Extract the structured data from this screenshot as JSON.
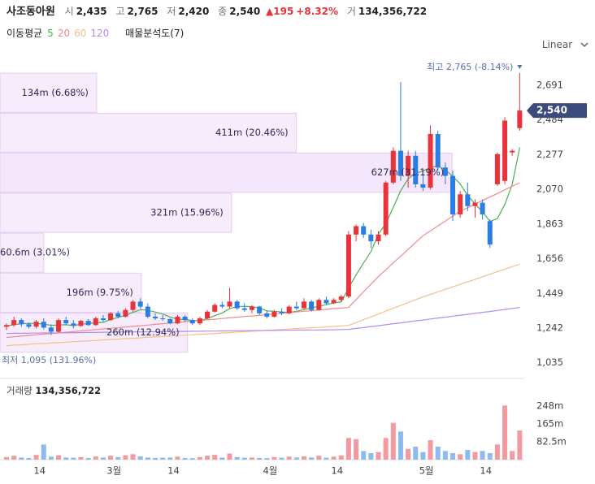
{
  "header": {
    "name": "사조동아원",
    "items": [
      {
        "label": "시",
        "value": "2,435"
      },
      {
        "label": "고",
        "value": "2,765"
      },
      {
        "label": "저",
        "value": "2,420"
      },
      {
        "label": "종",
        "value": "2,540"
      }
    ],
    "change": "▲195",
    "change_pct": "+8.32%",
    "volume_label": "거",
    "volume": "134,356,722"
  },
  "legend": {
    "title": "이동평균",
    "profile": "매물분석도(7)"
  },
  "scale_mode": "Linear",
  "chart_data": [
    {
      "type": "candlestick",
      "categories": [
        null,
        null,
        null,
        null,
        null,
        "14",
        null,
        null,
        null,
        null,
        null,
        null,
        null,
        null,
        null,
        "3월",
        null,
        null,
        null,
        null,
        null,
        null,
        null,
        "14",
        null,
        null,
        null,
        null,
        null,
        null,
        null,
        null,
        null,
        null,
        null,
        null,
        "4월",
        null,
        null,
        null,
        null,
        null,
        null,
        null,
        null,
        "14",
        null,
        null,
        null,
        null,
        null,
        null,
        null,
        null,
        null,
        null,
        null,
        "5월",
        null,
        null,
        null,
        null,
        null,
        null,
        null,
        "14",
        null,
        null,
        null,
        null
      ],
      "open": [
        1250,
        1260,
        1290,
        1265,
        1250,
        1280,
        1245,
        1220,
        1290,
        1270,
        1255,
        1285,
        1260,
        1300,
        1290,
        1330,
        1310,
        1350,
        1400,
        1370,
        1310,
        1300,
        1295,
        1270,
        1310,
        1290,
        1270,
        1300,
        1340,
        1380,
        1370,
        1400,
        1360,
        1350,
        1370,
        1330,
        1310,
        1340,
        1330,
        1370,
        1360,
        1400,
        1350,
        1410,
        1390,
        1410,
        1430,
        1800,
        1850,
        1800,
        1760,
        1800,
        2110,
        2300,
        2150,
        2270,
        2100,
        2080,
        2400,
        2200,
        2150,
        1920,
        2040,
        1970,
        1990,
        1880,
        2100,
        2120,
        2290,
        2435
      ],
      "high": [
        1270,
        1310,
        1300,
        1275,
        1290,
        1300,
        1265,
        1300,
        1310,
        1290,
        1290,
        1295,
        1310,
        1320,
        1340,
        1345,
        1360,
        1410,
        1420,
        1390,
        1330,
        1320,
        1300,
        1320,
        1320,
        1300,
        1310,
        1350,
        1390,
        1400,
        1480,
        1410,
        1390,
        1380,
        1375,
        1345,
        1350,
        1360,
        1380,
        1400,
        1420,
        1410,
        1420,
        1430,
        1420,
        1440,
        1820,
        1860,
        1870,
        1830,
        1820,
        2120,
        2320,
        2710,
        2300,
        2300,
        2160,
        2450,
        2420,
        2230,
        2180,
        2060,
        2110,
        2010,
        2010,
        1890,
        2290,
        2500,
        2310,
        2765
      ],
      "low": [
        1230,
        1250,
        1250,
        1240,
        1240,
        1235,
        1200,
        1215,
        1260,
        1240,
        1250,
        1255,
        1255,
        1280,
        1285,
        1300,
        1305,
        1340,
        1360,
        1300,
        1290,
        1285,
        1265,
        1265,
        1280,
        1260,
        1260,
        1295,
        1335,
        1360,
        1360,
        1350,
        1340,
        1330,
        1320,
        1300,
        1305,
        1320,
        1325,
        1350,
        1355,
        1340,
        1345,
        1380,
        1385,
        1400,
        1420,
        1760,
        1780,
        1720,
        1740,
        1790,
        2100,
        2120,
        2080,
        2080,
        2060,
        2070,
        2180,
        2100,
        1880,
        1900,
        1940,
        1900,
        1890,
        1720,
        2090,
        2100,
        2270,
        2420
      ],
      "close": [
        1260,
        1290,
        1265,
        1250,
        1280,
        1245,
        1220,
        1290,
        1270,
        1255,
        1285,
        1260,
        1300,
        1290,
        1330,
        1310,
        1350,
        1400,
        1370,
        1310,
        1300,
        1295,
        1270,
        1310,
        1290,
        1270,
        1300,
        1340,
        1380,
        1370,
        1400,
        1360,
        1350,
        1370,
        1330,
        1310,
        1340,
        1330,
        1370,
        1360,
        1400,
        1350,
        1410,
        1390,
        1410,
        1430,
        1800,
        1850,
        1800,
        1760,
        1800,
        2110,
        2300,
        2150,
        2270,
        2100,
        2080,
        2400,
        2200,
        2150,
        1920,
        2040,
        1970,
        1990,
        1920,
        1740,
        2280,
        2480,
        2300,
        2540
      ],
      "up_color": "#e8333a",
      "down_color": "#2a7de1",
      "ylim": [
        990,
        2836
      ],
      "yticks": [
        {
          "value": 1035,
          "label": "1,035"
        },
        {
          "value": 1242,
          "label": "1,242"
        },
        {
          "value": 1449,
          "label": "1,449"
        },
        {
          "value": 1656,
          "label": "1,656"
        },
        {
          "value": 1863,
          "label": "1,863"
        },
        {
          "value": 2070,
          "label": "2,070"
        },
        {
          "value": 2277,
          "label": "2,277"
        },
        {
          "value": 2484,
          "label": "2,484"
        },
        {
          "value": 2691,
          "label": "2,691"
        }
      ],
      "grid": false,
      "series": [
        {
          "name": "5",
          "color": "#4caf50",
          "values": [
            1255,
            1262,
            1268,
            1270,
            1269,
            1266,
            1258,
            1261,
            1262,
            1257,
            1264,
            1270,
            1274,
            1276,
            1293,
            1306,
            1318,
            1336,
            1352,
            1348,
            1338,
            1326,
            1308,
            1295,
            1293,
            1287,
            1287,
            1299,
            1316,
            1332,
            1358,
            1370,
            1372,
            1370,
            1362,
            1344,
            1342,
            1338,
            1336,
            1342,
            1352,
            1362,
            1372,
            1382,
            1392,
            1398,
            1482,
            1560,
            1630,
            1698,
            1802,
            1866,
            1962,
            2062,
            2132,
            2166,
            2180,
            2200,
            2210,
            2186,
            2148,
            2102,
            2034,
            1982,
            1936,
            1878,
            1896,
            1980,
            2100,
            2320
          ]
        },
        {
          "name": "20",
          "color": "#f08a8a",
          "values": [
            1186,
            1190,
            1194,
            1198,
            1202,
            1206,
            1210,
            1213,
            1217,
            1221,
            1225,
            1229,
            1233,
            1237,
            1241,
            1244,
            1248,
            1252,
            1256,
            1260,
            1264,
            1268,
            1272,
            1276,
            1280,
            1283,
            1287,
            1291,
            1295,
            1299,
            1303,
            1307,
            1311,
            1314,
            1318,
            1322,
            1326,
            1330,
            1334,
            1338,
            1342,
            1346,
            1350,
            1354,
            1358,
            1361,
            1365,
            1411,
            1458,
            1504,
            1550,
            1590,
            1631,
            1671,
            1712,
            1752,
            1793,
            1822,
            1851,
            1880,
            1910,
            1939,
            1960,
            1982,
            2003,
            2024,
            2045,
            2067,
            2088,
            2109
          ]
        },
        {
          "name": "60",
          "color": "#f5bf8a",
          "values": [
            1137,
            1140,
            1142,
            1145,
            1148,
            1150,
            1153,
            1155,
            1158,
            1161,
            1163,
            1166,
            1168,
            1171,
            1174,
            1176,
            1179,
            1181,
            1184,
            1187,
            1189,
            1192,
            1194,
            1197,
            1200,
            1202,
            1205,
            1207,
            1210,
            1213,
            1215,
            1218,
            1220,
            1223,
            1226,
            1228,
            1231,
            1233,
            1236,
            1239,
            1241,
            1244,
            1246,
            1249,
            1252,
            1255,
            1258,
            1275,
            1292,
            1309,
            1326,
            1343,
            1360,
            1377,
            1394,
            1411,
            1428,
            1443,
            1458,
            1473,
            1488,
            1503,
            1518,
            1533,
            1548,
            1563,
            1578,
            1593,
            1608,
            1623
          ]
        },
        {
          "name": "120",
          "color": "#b48cf0",
          "values": [
            1210,
            1211,
            1211,
            1212,
            1212,
            1213,
            1213,
            1214,
            1214,
            1215,
            1215,
            1216,
            1216,
            1217,
            1217,
            1218,
            1218,
            1219,
            1219,
            1220,
            1220,
            1221,
            1221,
            1222,
            1222,
            1223,
            1223,
            1224,
            1224,
            1225,
            1225,
            1226,
            1226,
            1227,
            1227,
            1228,
            1228,
            1229,
            1229,
            1230,
            1230,
            1231,
            1231,
            1232,
            1232,
            1233,
            1234,
            1240,
            1245,
            1251,
            1256,
            1262,
            1268,
            1273,
            1279,
            1285,
            1290,
            1296,
            1302,
            1307,
            1313,
            1319,
            1324,
            1330,
            1336,
            1341,
            1347,
            1353,
            1359,
            1365
          ]
        }
      ],
      "volume_profile": {
        "bins": [
          1095,
          1333.6,
          1572.1,
          1810.7,
          2049.3,
          2287.9,
          2526.4,
          2765
        ],
        "values": [
          260000000,
          196000000,
          60600000,
          321000000,
          627000000,
          411000000,
          134000000
        ],
        "value_labels": [
          "260m (12.94%)",
          "196m (9.75%)",
          "60.6m (3.01%)",
          "321m (15.96%)",
          "627m (31.19%)",
          "411m (20.46%)",
          "134m (6.68%)"
        ],
        "color": "#f3e6fb",
        "xlim": [
          0,
          727000000
        ]
      },
      "annotations": {
        "high": "최고 2,765 (-8.14%)",
        "low": "최저 1,095 (131.96%)"
      },
      "last_price_label": "2,540"
    },
    {
      "type": "bar",
      "title": "거래량",
      "title_value": "134,356,722",
      "values": [
        12000000,
        18000000,
        10000000,
        8000000,
        22000000,
        70000000,
        14000000,
        20000000,
        10000000,
        9000000,
        12000000,
        8000000,
        15000000,
        10000000,
        18000000,
        12000000,
        20000000,
        25000000,
        15000000,
        10000000,
        8000000,
        9000000,
        10000000,
        14000000,
        8000000,
        7000000,
        12000000,
        18000000,
        22000000,
        10000000,
        28000000,
        12000000,
        9000000,
        10000000,
        8000000,
        7000000,
        12000000,
        9000000,
        14000000,
        10000000,
        15000000,
        10000000,
        18000000,
        9000000,
        14000000,
        20000000,
        100000000,
        95000000,
        40000000,
        30000000,
        35000000,
        100000000,
        170000000,
        130000000,
        50000000,
        60000000,
        35000000,
        90000000,
        60000000,
        40000000,
        30000000,
        25000000,
        45000000,
        35000000,
        40000000,
        30000000,
        70000000,
        250000000,
        40000000,
        134356722
      ],
      "up_color": "#f29a9f",
      "down_color": "#8fbaf0",
      "ylim": [
        0,
        330000000
      ],
      "yticks": [
        {
          "value": 82500000,
          "label": "82.5m"
        },
        {
          "value": 165000000,
          "label": "165m"
        },
        {
          "value": 247500000,
          "label": "248m"
        }
      ]
    }
  ]
}
